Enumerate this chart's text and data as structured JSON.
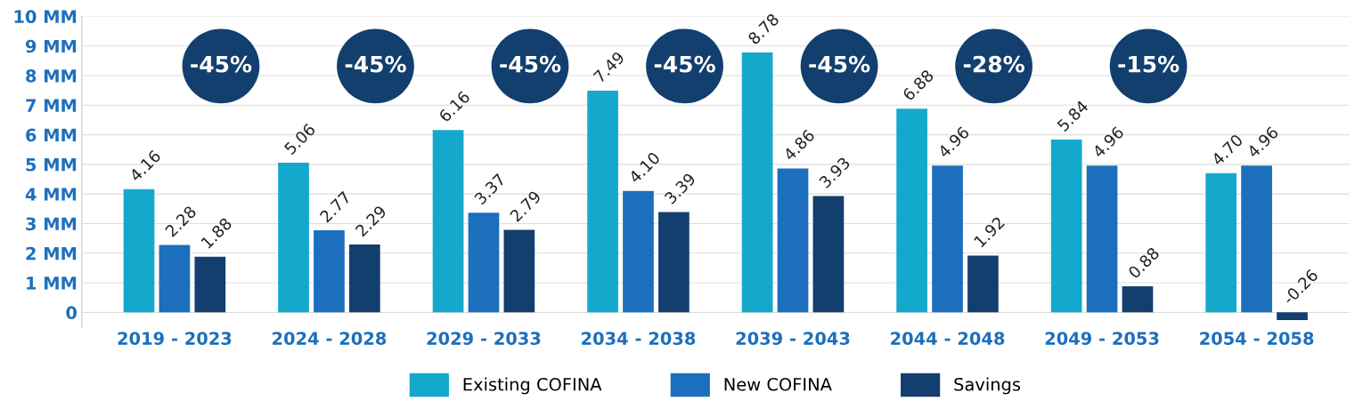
{
  "chart_data": {
    "type": "bar",
    "categories": [
      "2019 - 2023",
      "2024 - 2028",
      "2029 - 2033",
      "2034 - 2038",
      "2039 - 2043",
      "2044 - 2048",
      "2049 - 2053",
      "2054 - 2058"
    ],
    "series": [
      {
        "name": "Existing COFINA",
        "color": "#14a9cc",
        "values": [
          4.16,
          5.06,
          6.16,
          7.49,
          8.78,
          6.88,
          5.84,
          4.7
        ],
        "value_labels": [
          "4.16",
          "5.06",
          "6.16",
          "7.49",
          "8.78",
          "6.88",
          "5.84",
          "4.70"
        ]
      },
      {
        "name": "New COFINA",
        "color": "#1c6fbd",
        "values": [
          2.28,
          2.77,
          3.37,
          4.1,
          4.86,
          4.96,
          4.96,
          4.96
        ],
        "value_labels": [
          "2.28",
          "2.77",
          "3.37",
          "4.10",
          "4.86",
          "4.96",
          "4.96",
          "4.96"
        ]
      },
      {
        "name": "Savings",
        "color": "#123f6e",
        "values": [
          1.88,
          2.29,
          2.79,
          3.39,
          3.93,
          1.92,
          0.88,
          -0.26
        ],
        "value_labels": [
          "1.88",
          "2.29",
          "2.79",
          "3.39",
          "3.93",
          "1.92",
          "0.88",
          "-0.26"
        ]
      }
    ],
    "ylim": [
      -0.5,
      10
    ],
    "yticks": [
      0,
      {
        "value": 1,
        "label": "1 MM"
      },
      {
        "value": 2,
        "label": "2 MM"
      },
      {
        "value": 3,
        "label": "3 MM"
      },
      {
        "value": 4,
        "label": "4 MM"
      },
      {
        "value": 5,
        "label": "5 MM"
      },
      {
        "value": 6,
        "label": "6 MM"
      },
      {
        "value": 7,
        "label": "7 MM"
      },
      {
        "value": 8,
        "label": "8 MM"
      },
      {
        "value": 9,
        "label": "9 MM"
      },
      {
        "value": 10,
        "label": "10 MM"
      }
    ],
    "annotations": [
      "-45%",
      "-45%",
      "-45%",
      "-45%",
      "-45%",
      "-28%",
      "-15%"
    ],
    "grid": "y",
    "legend": "bottom"
  }
}
